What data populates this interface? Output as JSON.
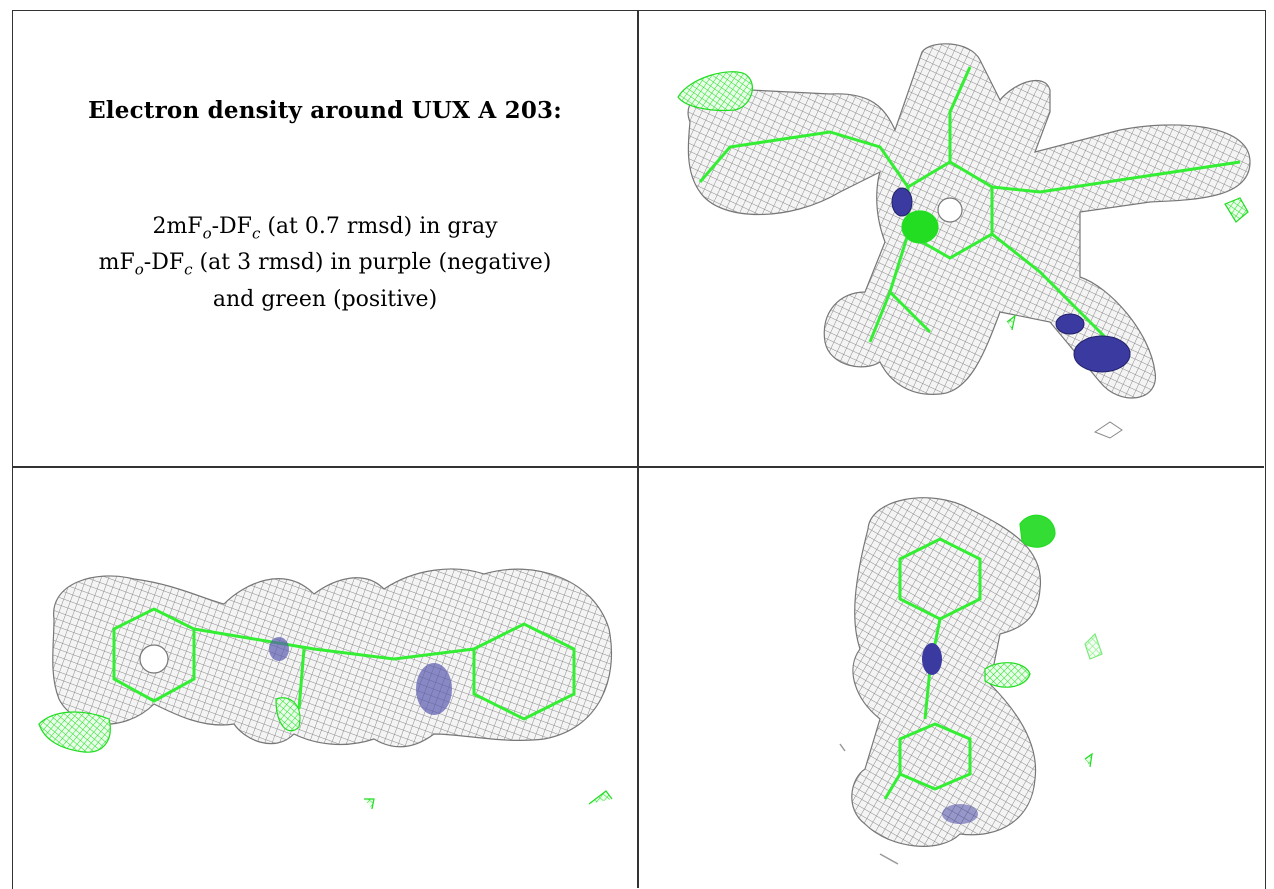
{
  "caption": {
    "title": "Electron density around UUX A 203:",
    "line1": {
      "a": "2mF",
      "a_sub": "o",
      "b": "-DF",
      "b_sub": "c",
      "rest": " (at 0.7 rmsd) in gray"
    },
    "line2": {
      "a": "mF",
      "a_sub": "o",
      "b": "-DF",
      "b_sub": "c",
      "rest": " (at 3 rmsd) in purple (negative)"
    },
    "line3": "and green (positive)"
  },
  "colors": {
    "mesh_gray": "#8a8a8a",
    "model_green": "#33ee33",
    "positive_green": "#22dd22",
    "negative_purple": "#3a3aa0"
  },
  "views": [
    {
      "name": "top-right view"
    },
    {
      "name": "bottom-left view"
    },
    {
      "name": "bottom-right view"
    }
  ]
}
